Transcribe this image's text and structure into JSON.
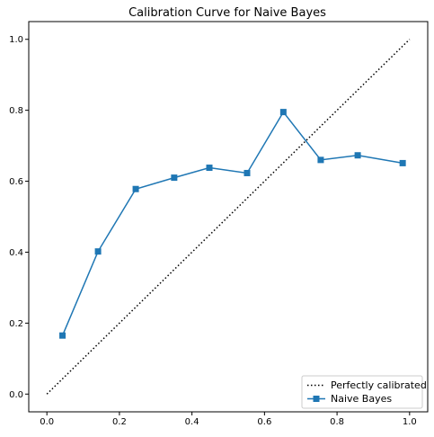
{
  "chart_data": {
    "type": "line",
    "title": "Calibration Curve for Naive Bayes",
    "xlabel": "",
    "ylabel": "",
    "xlim": [
      -0.05,
      1.05
    ],
    "ylim": [
      -0.05,
      1.05
    ],
    "xticks": [
      "0.0",
      "0.2",
      "0.4",
      "0.6",
      "0.8",
      "1.0"
    ],
    "yticks": [
      "0.0",
      "0.2",
      "0.4",
      "0.6",
      "0.8",
      "1.0"
    ],
    "grid": false,
    "legend_position": "lower-right",
    "series": [
      {
        "name": "Perfectly calibrated",
        "style": "dotted",
        "color": "#000000",
        "marker": "none",
        "x": [
          0.0,
          1.0
        ],
        "y": [
          0.0,
          1.0
        ]
      },
      {
        "name": "Naive Bayes",
        "style": "solid",
        "color": "#1f77b4",
        "marker": "square",
        "x": [
          0.043,
          0.141,
          0.245,
          0.351,
          0.448,
          0.552,
          0.652,
          0.755,
          0.857,
          0.981
        ],
        "y": [
          0.165,
          0.402,
          0.578,
          0.61,
          0.638,
          0.623,
          0.795,
          0.66,
          0.673,
          0.651
        ]
      }
    ]
  }
}
